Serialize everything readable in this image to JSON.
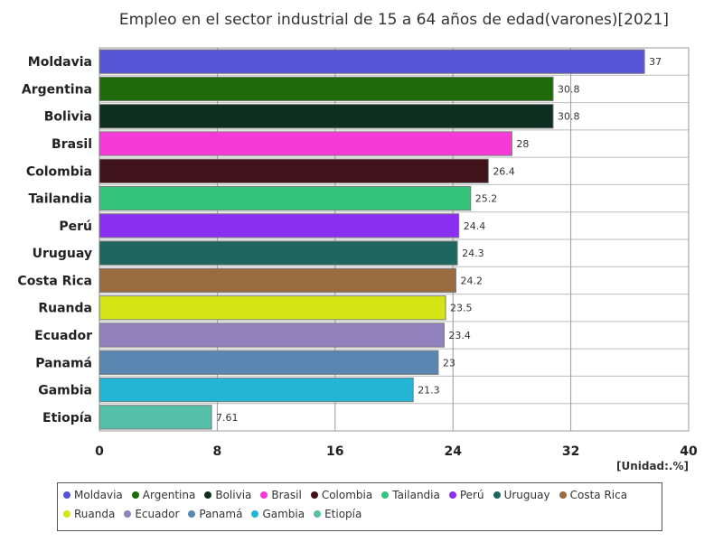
{
  "chart_data": {
    "type": "bar",
    "orientation": "horizontal",
    "title": "Empleo en el sector industrial de 15 a 64 años de edad(varones)[2021]",
    "unit": "[Unidad:.%]",
    "xlim": [
      0,
      40
    ],
    "xticks": [
      0,
      8,
      16,
      24,
      32,
      40
    ],
    "grid": true,
    "legend_position": "bottom",
    "categories": [
      "Moldavia",
      "Argentina",
      "Bolivia",
      "Brasil",
      "Colombia",
      "Tailandia",
      "Perú",
      "Uruguay",
      "Costa Rica",
      "Ruanda",
      "Ecuador",
      "Panamá",
      "Gambia",
      "Etiopía"
    ],
    "values": [
      37,
      30.8,
      30.8,
      28,
      26.4,
      25.2,
      24.4,
      24.3,
      24.2,
      23.5,
      23.4,
      23,
      21.3,
      7.61
    ],
    "value_labels": [
      "37",
      "30.8",
      "30.8",
      "28",
      "26.4",
      "25.2",
      "24.4",
      "24.3",
      "24.2",
      "23.5",
      "23.4",
      "23",
      "21.3",
      "7.61"
    ],
    "colors": [
      "#5555d5",
      "#1f6a0a",
      "#0d2e20",
      "#f53ad8",
      "#40121a",
      "#35c47c",
      "#8a2ef0",
      "#1f6660",
      "#9a6b3e",
      "#d4e516",
      "#9181bd",
      "#5a87b2",
      "#22b5d6",
      "#55bfa9"
    ]
  }
}
